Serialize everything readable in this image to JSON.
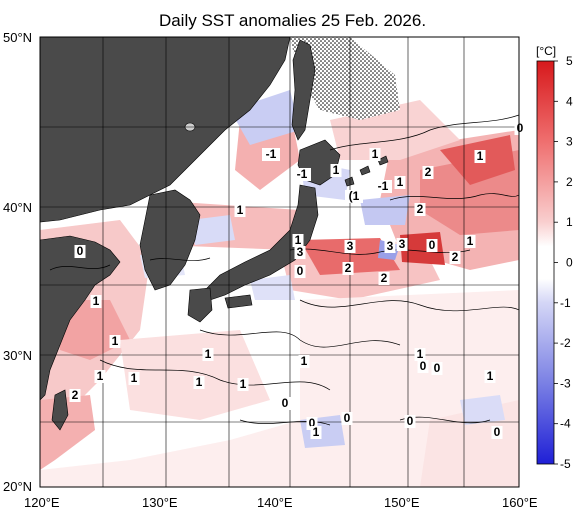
{
  "title": "Daily SST anomalies 25 Feb. 2026.",
  "lat_labels": [
    "50°N",
    "40°N",
    "30°N",
    "20°N"
  ],
  "lon_labels": [
    "120°E",
    "130°E",
    "140°E",
    "150°E",
    "160°E"
  ],
  "colorbar": {
    "unit": "[°C]",
    "ticks": [
      "5",
      "4",
      "3",
      "2",
      "1",
      "0",
      "-1",
      "-2",
      "-3",
      "-4",
      "-5"
    ],
    "warm_color": "#e8262b",
    "cold_color": "#2b2bd9"
  },
  "contour_labels": [
    "-1",
    "1",
    "-1",
    "1",
    "1",
    "2",
    "1",
    "1",
    "-1",
    "(1",
    "2",
    "3",
    "1",
    "2",
    "0",
    "1",
    "3",
    "3",
    "3",
    "2",
    "0",
    "2",
    "1",
    "1",
    "1",
    "1",
    "1",
    "1",
    "0",
    "0",
    "1",
    "0",
    "1",
    "1",
    "1",
    "0",
    "0",
    "0",
    "2",
    "0",
    "1",
    "0",
    "0"
  ]
}
